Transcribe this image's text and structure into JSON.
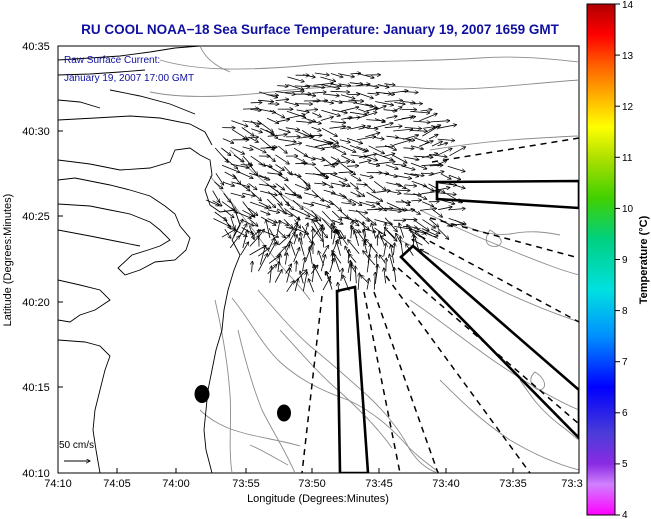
{
  "title": "RU COOL  NOAA−18  Sea Surface Temperature:  January 19, 2007 1659 GMT",
  "overlay": {
    "line1": "Raw Surface Current:",
    "line2": "January 19, 2007 17:00 GMT"
  },
  "scale_label": "50 cm/s",
  "x_axis": {
    "label": "Longitude (Degrees:Minutes)",
    "ticks": [
      "74:10",
      "74:05",
      "74:00",
      "73:55",
      "73:50",
      "73:45",
      "73:40",
      "73:35",
      "73:3"
    ]
  },
  "y_axis": {
    "label": "Latitude (Degrees:Minutes)",
    "ticks": [
      "40:35",
      "40:30",
      "40:25",
      "40:20",
      "40:15",
      "40:10"
    ]
  },
  "colorbar": {
    "label": "Temperature (°C)",
    "ticks": [
      "14",
      "13",
      "12",
      "11",
      "10",
      "9",
      "8",
      "7",
      "6",
      "5",
      "4"
    ],
    "min": 4,
    "max": 14
  },
  "colors": {
    "title": "#1010a0",
    "overlay_text": "#1010a0",
    "coast": "#000000",
    "bathymetry": "#8c8c8c",
    "vectors": "#000000"
  }
}
